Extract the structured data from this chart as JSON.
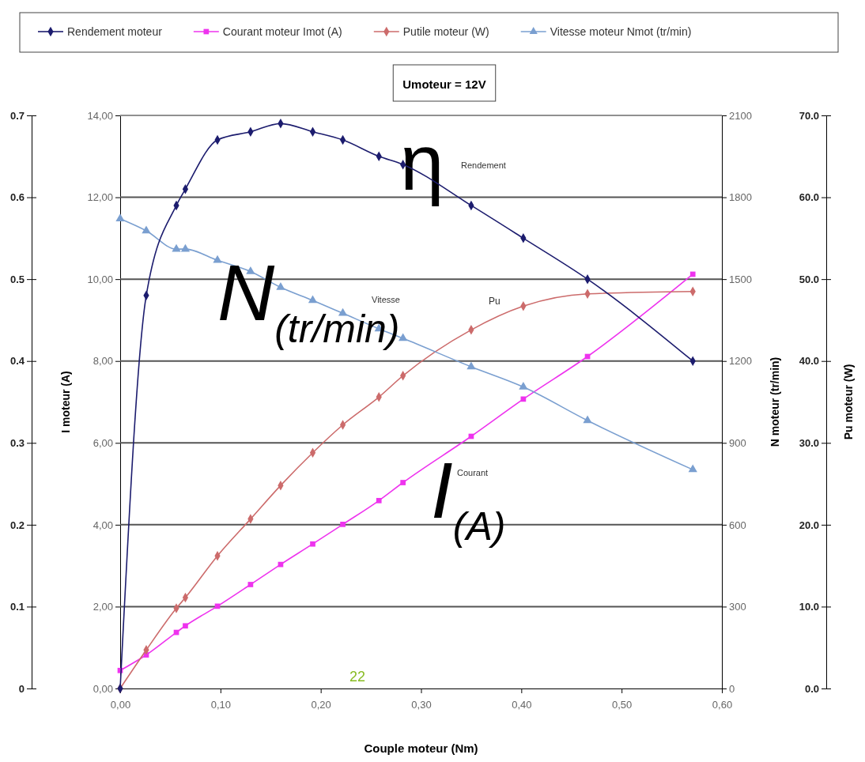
{
  "chart_data": [
    {
      "type": "line",
      "title": "Umoteur = 12V",
      "xlabel": "Couple moteur (Nm)",
      "ylabel": "I moteur (A)",
      "y2label": "N moteur (tr/min)",
      "y3label": "Pu moteur (W)",
      "x": [
        0,
        0.026,
        0.056,
        0.065,
        0.097,
        0.13,
        0.16,
        0.192,
        0.222,
        0.258,
        0.282,
        0.35,
        0.402,
        0.466,
        0.571
      ],
      "xlim": [
        0,
        0.6
      ],
      "xticks": [
        {
          "value": 0,
          "label": "0,00"
        },
        {
          "value": 0.1,
          "label": "0,10"
        },
        {
          "value": 0.2,
          "label": "0,20"
        },
        {
          "value": 0.3,
          "label": "0,30"
        },
        {
          "value": 0.4,
          "label": "0,40"
        },
        {
          "value": 0.5,
          "label": "0,50"
        },
        {
          "value": 0.6,
          "label": "0,60"
        }
      ],
      "ylim": [
        0,
        14
      ],
      "yticks": [
        {
          "value": 0,
          "label": "0,00"
        },
        {
          "value": 2,
          "label": "2,00"
        },
        {
          "value": 4,
          "label": "4,00"
        },
        {
          "value": 6,
          "label": "6,00"
        },
        {
          "value": 8,
          "label": "8,00"
        },
        {
          "value": 10,
          "label": "10,00"
        },
        {
          "value": 12,
          "label": "12,00"
        },
        {
          "value": 14,
          "label": "14,00"
        }
      ],
      "y2lim": [
        0,
        2100
      ],
      "y2ticks": [
        0,
        300,
        600,
        900,
        1200,
        1500,
        1800,
        2100
      ],
      "y3lim": [
        0,
        70
      ],
      "y3ticks": [
        {
          "value": 0,
          "label": "0.0"
        },
        {
          "value": 10,
          "label": "10.0"
        },
        {
          "value": 20,
          "label": "20.0"
        },
        {
          "value": 30,
          "label": "30.0"
        },
        {
          "value": 40,
          "label": "40.0"
        },
        {
          "value": 50,
          "label": "50.0"
        },
        {
          "value": 60,
          "label": "60.0"
        },
        {
          "value": 70,
          "label": "70.0"
        }
      ],
      "grid": "y",
      "legend": "top",
      "series": [
        {
          "name": "Courant moteur Imot (A)",
          "color": "#ee33ee",
          "marker": "square",
          "values": [
            0.44,
            0.82,
            1.37,
            1.53,
            2.01,
            2.54,
            3.03,
            3.53,
            4.01,
            4.59,
            5.03,
            6.16,
            7.07,
            8.11,
            10.12
          ]
        },
        {
          "name": "Putile moteur (W)",
          "color": "#cc6b6b",
          "marker": "diamond",
          "axis": "y3",
          "values": [
            0,
            4.7,
            9.8,
            11.1,
            16.2,
            20.7,
            24.8,
            28.8,
            32.2,
            35.6,
            38.2,
            43.8,
            46.7,
            48.2,
            48.5
          ]
        },
        {
          "name": "Vitesse moteur Nmot (tr/min)",
          "color": "#7a9fd0",
          "marker": "triangle",
          "axis": "y2",
          "values": [
            1721,
            1677,
            1610,
            1610,
            1569,
            1528,
            1470,
            1422,
            1375,
            1318,
            1283,
            1179,
            1105,
            982,
            802
          ]
        }
      ],
      "annotations": [
        "Rendement",
        "Vitesse",
        "Pu",
        "Courant",
        "η",
        "N$_{(tr/min)}$",
        "I$_{(A)}$",
        "22"
      ]
    },
    {
      "type": "line",
      "tick_labels": "y",
      "legend": "top",
      "x": [
        0,
        0.026,
        0.056,
        0.065,
        0.097,
        0.13,
        0.16,
        0.192,
        0.222,
        0.258,
        0.282,
        0.35,
        0.402,
        0.466,
        0.571
      ],
      "xlim": [
        0,
        0.6
      ],
      "ylim": [
        0,
        0.7
      ],
      "yticks": [
        0,
        0.1,
        0.2,
        0.3,
        0.4,
        0.5,
        0.6,
        0.7
      ],
      "series": [
        {
          "name": "Rendement moteur",
          "color": "#1c1c6e",
          "marker": "diamond",
          "values": [
            0,
            0.48,
            0.59,
            0.61,
            0.67,
            0.68,
            0.69,
            0.68,
            0.67,
            0.65,
            0.64,
            0.59,
            0.55,
            0.5,
            0.4
          ]
        }
      ]
    }
  ]
}
